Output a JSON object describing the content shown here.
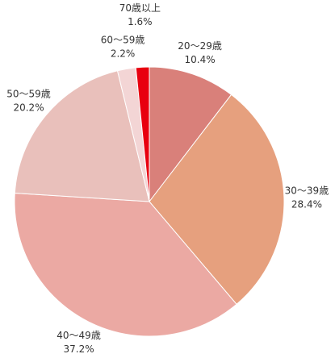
{
  "chart_data": {
    "type": "pie",
    "categories": [
      "20～29歳",
      "30～39歳",
      "40～49歳",
      "50～59歳",
      "60～59歳",
      "70歳以上"
    ],
    "values": [
      10.4,
      28.4,
      37.2,
      20.2,
      2.2,
      1.6
    ],
    "value_labels": [
      "10.4%",
      "28.4%",
      "37.2%",
      "20.2%",
      "2.2%",
      "1.6%"
    ],
    "colors": [
      "#d9807a",
      "#e6a07e",
      "#eba9a3",
      "#e9c0bb",
      "#f3d5d5",
      "#e8000f"
    ]
  }
}
